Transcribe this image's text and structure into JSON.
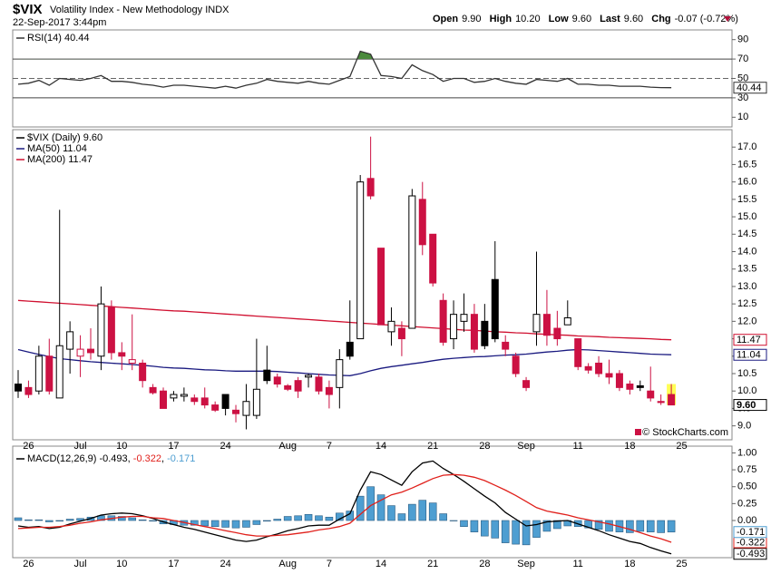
{
  "header": {
    "symbol": "$VIX",
    "name": "Volatility Index - New Methodology INDX",
    "date": "22-Sep-2017 3:44pm",
    "quote": [
      {
        "label": "Open",
        "value": "9.90"
      },
      {
        "label": "High",
        "value": "10.20"
      },
      {
        "label": "Low",
        "value": "9.60"
      },
      {
        "label": "Last",
        "value": "9.60"
      },
      {
        "label": "Chg",
        "value": "-0.07 (-0.72%)"
      }
    ],
    "copyright": "© StockCharts.com"
  },
  "chart_data": [
    {
      "type": "line",
      "series": [
        {
          "name": "RSI(14) 40.44",
          "color": "#333333",
          "end_label": "40.44",
          "values": [
            44,
            45,
            48,
            43,
            50,
            49,
            48,
            50,
            53,
            47,
            47,
            46,
            44,
            43,
            41,
            43,
            43,
            42,
            41,
            40,
            42,
            40,
            43,
            45,
            49,
            47,
            46,
            45,
            47,
            45,
            44,
            48,
            52,
            78,
            75,
            53,
            52,
            50,
            64,
            58,
            54,
            47,
            50,
            50,
            46,
            47,
            50,
            47,
            45,
            44,
            49,
            48,
            47,
            50,
            44,
            44,
            43,
            43,
            42,
            42,
            42,
            41,
            40.6,
            40.44,
            null
          ]
        }
      ],
      "ylim": [
        0,
        100
      ],
      "yticks": [
        10,
        30,
        50,
        70,
        90
      ],
      "bands": [
        30,
        70
      ],
      "midline": 50,
      "overbought_color": "#4a8a3c"
    },
    {
      "type": "candlestick",
      "name": "$VIX (Daily) 9.60",
      "end_label": "9.60",
      "categories": [
        null,
        "26",
        null,
        null,
        null,
        null,
        "Jul",
        null,
        null,
        null,
        "10",
        null,
        null,
        null,
        null,
        "17",
        null,
        null,
        null,
        null,
        "24",
        null,
        null,
        null,
        null,
        null,
        "Aug",
        null,
        null,
        null,
        "7",
        null,
        null,
        null,
        null,
        "14",
        null,
        null,
        null,
        null,
        "21",
        null,
        null,
        null,
        null,
        "28",
        null,
        null,
        null,
        "Sep",
        null,
        null,
        null,
        null,
        "11",
        null,
        null,
        null,
        null,
        "18",
        null,
        null,
        null,
        null,
        "25"
      ],
      "open": [
        10.2,
        10.1,
        10.0,
        11.0,
        9.8,
        11.2,
        11.0,
        11.2,
        11.0,
        12.4,
        11.1,
        10.8,
        10.8,
        10.1,
        10.0,
        9.8,
        9.85,
        9.8,
        9.8,
        9.6,
        9.9,
        9.45,
        9.3,
        9.3,
        10.6,
        10.4,
        10.15,
        10.3,
        10.4,
        10.4,
        10.1,
        10.1,
        11.4,
        11.5,
        16.1,
        14.1,
        11.7,
        11.8,
        11.8,
        15.5,
        14.5,
        12.6,
        11.5,
        12.0,
        12.2,
        12.0,
        13.2,
        11.4,
        11.0,
        10.3,
        11.7,
        12.2,
        11.8,
        11.9,
        11.5,
        10.7,
        10.8,
        10.5,
        10.5,
        10.2,
        10.15,
        10.0,
        9.7,
        9.9,
        null
      ],
      "high": [
        10.6,
        10.3,
        11.3,
        11.5,
        15.2,
        12.0,
        11.6,
        11.8,
        13.0,
        12.6,
        11.4,
        12.2,
        10.9,
        10.2,
        10.1,
        10.0,
        10.1,
        9.9,
        10.1,
        9.7,
        9.9,
        9.6,
        10.2,
        11.5,
        11.3,
        10.5,
        10.2,
        10.4,
        10.5,
        10.5,
        10.3,
        11.2,
        12.6,
        16.2,
        17.3,
        14.1,
        12.4,
        12.0,
        15.8,
        16.0,
        14.5,
        12.8,
        12.6,
        12.8,
        12.5,
        12.5,
        14.3,
        11.6,
        11.1,
        10.4,
        14.0,
        12.9,
        12.3,
        12.6,
        11.5,
        10.8,
        11.0,
        10.9,
        10.6,
        10.3,
        10.3,
        10.7,
        9.9,
        10.2,
        null
      ],
      "low": [
        9.8,
        9.8,
        9.9,
        9.9,
        9.8,
        10.5,
        10.4,
        10.9,
        10.6,
        10.9,
        10.6,
        10.6,
        10.1,
        9.9,
        9.5,
        9.7,
        9.7,
        9.6,
        9.5,
        9.4,
        9.3,
        9.1,
        8.9,
        9.2,
        10.2,
        10.1,
        10.0,
        9.8,
        10.1,
        9.9,
        9.5,
        9.5,
        10.9,
        11.5,
        15.5,
        11.9,
        11.3,
        11.0,
        11.8,
        13.9,
        13.0,
        11.3,
        11.2,
        11.7,
        11.1,
        11.2,
        11.4,
        11.0,
        10.4,
        10.0,
        11.3,
        11.3,
        11.3,
        11.9,
        10.6,
        10.5,
        10.4,
        10.2,
        10.0,
        9.9,
        10.0,
        9.7,
        9.6,
        9.6,
        null
      ],
      "close": [
        10.0,
        9.9,
        11.0,
        10.0,
        11.3,
        11.7,
        11.2,
        11.1,
        12.5,
        11.1,
        11.0,
        10.9,
        10.3,
        9.95,
        9.5,
        9.9,
        9.9,
        9.7,
        9.6,
        9.45,
        9.5,
        9.35,
        9.7,
        10.05,
        10.3,
        10.2,
        10.05,
        10.0,
        10.45,
        10.0,
        9.9,
        10.9,
        11.0,
        16.0,
        15.6,
        11.9,
        12.0,
        11.5,
        15.6,
        14.2,
        13.1,
        11.4,
        12.2,
        12.2,
        11.2,
        11.3,
        11.5,
        11.2,
        10.5,
        10.1,
        12.2,
        11.6,
        11.5,
        12.1,
        10.7,
        10.6,
        10.5,
        10.4,
        10.1,
        10.05,
        10.1,
        9.8,
        9.67,
        9.6,
        null
      ],
      "up_color": "#000000",
      "down_color": "#cc1143",
      "highlight_color": "#ffff55",
      "series": [
        {
          "name": "MA(50) 11.04",
          "color": "#1a1a80",
          "end_label": "11.04",
          "values": [
            11.19,
            11.12,
            11.05,
            10.99,
            10.93,
            10.9,
            10.87,
            10.84,
            10.82,
            10.8,
            10.78,
            10.76,
            10.74,
            10.71,
            10.68,
            10.66,
            10.65,
            10.63,
            10.61,
            10.6,
            10.58,
            10.57,
            10.57,
            10.57,
            10.57,
            10.56,
            10.54,
            10.52,
            10.5,
            10.48,
            10.46,
            10.45,
            10.44,
            10.5,
            10.58,
            10.65,
            10.7,
            10.74,
            10.78,
            10.82,
            10.87,
            10.91,
            10.94,
            10.96,
            10.98,
            10.99,
            11.01,
            11.03,
            11.04,
            11.06,
            11.09,
            11.12,
            11.14,
            11.17,
            11.19,
            11.18,
            11.16,
            11.14,
            11.12,
            11.1,
            11.08,
            11.06,
            11.05,
            11.04,
            null
          ]
        },
        {
          "name": "MA(200) 11.47",
          "color": "#d01030",
          "end_label": "11.47",
          "values": [
            12.6,
            12.58,
            12.56,
            12.54,
            12.52,
            12.5,
            12.48,
            12.46,
            12.44,
            12.42,
            12.4,
            12.38,
            12.36,
            12.34,
            12.32,
            12.3,
            12.29,
            12.27,
            12.25,
            12.23,
            12.21,
            12.19,
            12.17,
            12.15,
            12.13,
            12.11,
            12.09,
            12.07,
            12.05,
            12.03,
            12.01,
            11.99,
            11.97,
            11.95,
            11.93,
            11.91,
            11.89,
            11.87,
            11.85,
            11.83,
            11.81,
            11.79,
            11.77,
            11.75,
            11.74,
            11.72,
            11.7,
            11.69,
            11.67,
            11.66,
            11.64,
            11.63,
            11.61,
            11.6,
            11.58,
            11.57,
            11.56,
            11.54,
            11.53,
            11.52,
            11.51,
            11.5,
            11.48,
            11.47,
            null
          ]
        }
      ],
      "ylim": [
        8.6,
        17.5
      ],
      "yticks": [
        {
          "value": 9,
          "label": "9.0"
        },
        9.5,
        {
          "value": 10,
          "label": "10.0"
        },
        10.5,
        {
          "value": 11,
          "label": "11.0"
        },
        11.5,
        {
          "value": 12,
          "label": "12.0"
        },
        12.5,
        {
          "value": 13,
          "label": "13.0"
        },
        13.5,
        {
          "value": 14,
          "label": "14.0"
        },
        14.5,
        {
          "value": 15,
          "label": "15.0"
        },
        15.5,
        {
          "value": 16,
          "label": "16.0"
        },
        16.5,
        {
          "value": 17,
          "label": "17.0"
        }
      ]
    },
    {
      "type": "line",
      "legend_separator": ", ",
      "categories": [
        null,
        "26",
        null,
        null,
        null,
        null,
        "Jul",
        null,
        null,
        null,
        "10",
        null,
        null,
        null,
        null,
        "17",
        null,
        null,
        null,
        null,
        "24",
        null,
        null,
        null,
        null,
        null,
        "Aug",
        null,
        null,
        null,
        "7",
        null,
        null,
        null,
        null,
        "14",
        null,
        null,
        null,
        null,
        "21",
        null,
        null,
        null,
        null,
        "28",
        null,
        null,
        null,
        "Sep",
        null,
        null,
        null,
        null,
        "11",
        null,
        null,
        null,
        null,
        "18",
        null,
        null,
        null,
        null,
        "25"
      ],
      "series": [
        {
          "name": "MACD(12,26,9) -0.493",
          "color": "#000000",
          "end_label": "-0.493",
          "values": [
            -0.08,
            -0.1,
            -0.09,
            -0.12,
            -0.1,
            -0.05,
            -0.01,
            0.03,
            0.08,
            0.1,
            0.11,
            0.1,
            0.07,
            0.03,
            -0.02,
            -0.06,
            -0.1,
            -0.13,
            -0.17,
            -0.21,
            -0.25,
            -0.29,
            -0.31,
            -0.29,
            -0.24,
            -0.2,
            -0.15,
            -0.12,
            -0.08,
            -0.07,
            -0.07,
            0.02,
            0.1,
            0.45,
            0.72,
            0.68,
            0.6,
            0.52,
            0.72,
            0.85,
            0.88,
            0.77,
            0.68,
            0.58,
            0.47,
            0.36,
            0.26,
            0.12,
            0.02,
            -0.08,
            -0.06,
            -0.02,
            -0.01,
            0,
            -0.05,
            -0.1,
            -0.15,
            -0.21,
            -0.26,
            -0.31,
            -0.34,
            -0.4,
            -0.45,
            -0.493,
            null
          ]
        },
        {
          "name": "-0.322",
          "color": "#e0201b",
          "end_label": "-0.322",
          "values": [
            -0.12,
            -0.11,
            -0.1,
            -0.1,
            -0.09,
            -0.07,
            -0.04,
            -0.02,
            0.01,
            0.03,
            0.05,
            0.06,
            0.06,
            0.04,
            0.03,
            0,
            -0.03,
            -0.06,
            -0.09,
            -0.12,
            -0.15,
            -0.18,
            -0.21,
            -0.23,
            -0.23,
            -0.22,
            -0.21,
            -0.19,
            -0.17,
            -0.14,
            -0.12,
            -0.09,
            -0.04,
            0.09,
            0.22,
            0.3,
            0.38,
            0.42,
            0.48,
            0.55,
            0.62,
            0.67,
            0.68,
            0.67,
            0.64,
            0.59,
            0.52,
            0.45,
            0.37,
            0.28,
            0.19,
            0.14,
            0.11,
            0.08,
            0.04,
            0.01,
            -0.02,
            -0.05,
            -0.09,
            -0.13,
            -0.18,
            -0.23,
            -0.27,
            -0.322,
            null
          ]
        },
        {
          "name": "-0.171",
          "color": "#4e9ed1",
          "type": "bar",
          "end_label": "-0.171",
          "values": [
            0.04,
            0.01,
            0.01,
            -0.02,
            -0.01,
            0.02,
            0.03,
            0.05,
            0.07,
            0.07,
            0.06,
            0.04,
            0.01,
            -0.01,
            -0.05,
            -0.06,
            -0.07,
            -0.07,
            -0.08,
            -0.09,
            -0.1,
            -0.11,
            -0.1,
            -0.06,
            -0.01,
            0.02,
            0.06,
            0.07,
            0.09,
            0.07,
            0.05,
            0.11,
            0.14,
            0.36,
            0.5,
            0.38,
            0.22,
            0.1,
            0.24,
            0.3,
            0.26,
            0.1,
            0,
            -0.09,
            -0.17,
            -0.23,
            -0.26,
            -0.33,
            -0.35,
            -0.36,
            -0.25,
            -0.16,
            -0.12,
            -0.08,
            -0.09,
            -0.11,
            -0.13,
            -0.16,
            -0.17,
            -0.18,
            -0.16,
            -0.17,
            -0.18,
            -0.171,
            null
          ]
        }
      ],
      "ylim": [
        -0.55,
        1.1
      ],
      "yticks": [
        {
          "value": 0,
          "label": "0.00"
        },
        {
          "value": 0.25,
          "label": "0.25"
        },
        {
          "value": 0.5,
          "label": "0.50"
        },
        {
          "value": 0.75,
          "label": "0.75"
        },
        {
          "value": 1,
          "label": "1.00"
        }
      ]
    }
  ]
}
